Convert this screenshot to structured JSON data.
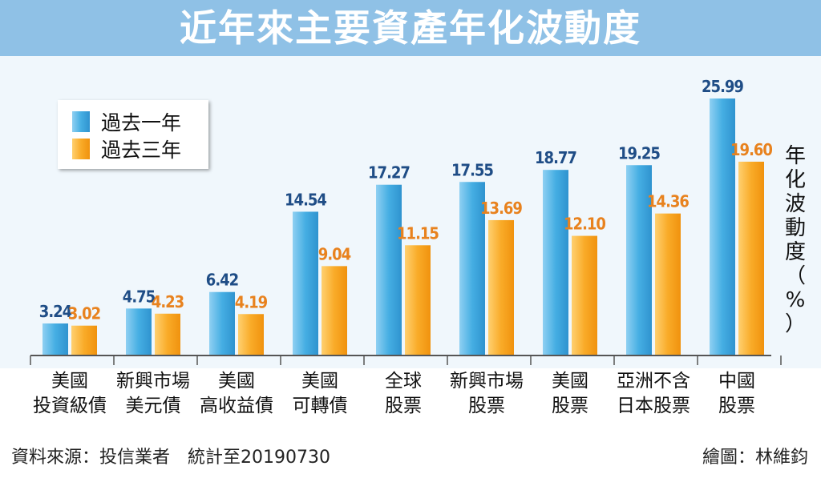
{
  "title": "近年來主要資產年化波動度",
  "ylabel_lines": [
    "年",
    "化",
    "波",
    "動",
    "度",
    "（",
    "%",
    "）"
  ],
  "source": "資料來源：投信業者　統計至20190730",
  "credit": "繪圖：林維鈞",
  "colors": {
    "title_bar": "#8fc1e6",
    "blue_series": "#3fa6dc",
    "orange_series": "#f7a11d",
    "blue_label": "#1f4d86",
    "orange_label": "#e8821e"
  },
  "chart_data": {
    "type": "bar",
    "title": "近年來主要資產年化波動度",
    "ylabel": "年化波動度（%）",
    "legend_position": "top-left",
    "grid": false,
    "categories": [
      [
        "美國",
        "投資級債"
      ],
      [
        "新興市場",
        "美元債"
      ],
      [
        "美國",
        "高收益債"
      ],
      [
        "美國",
        "可轉債"
      ],
      [
        "全球",
        "股票"
      ],
      [
        "新興市場",
        "股票"
      ],
      [
        "美國",
        "股票"
      ],
      [
        "亞洲不含",
        "日本股票"
      ],
      [
        "中國",
        "股票"
      ]
    ],
    "series": [
      {
        "name": "過去一年",
        "values": [
          3.24,
          4.75,
          6.42,
          14.54,
          17.27,
          17.55,
          18.77,
          19.25,
          25.99
        ],
        "labels": [
          "3.24",
          "4.75",
          "6.42",
          "14.54",
          "17.27",
          "17.55",
          "18.77",
          "19.25",
          "25.99"
        ]
      },
      {
        "name": "過去三年",
        "values": [
          3.02,
          4.23,
          4.19,
          9.04,
          11.15,
          13.69,
          12.1,
          14.36,
          19.6
        ],
        "labels": [
          "3.02",
          "4.23",
          "4.19",
          "9.04",
          "11.15",
          "13.69",
          "12.10",
          "14.36",
          "19.60"
        ]
      }
    ]
  }
}
